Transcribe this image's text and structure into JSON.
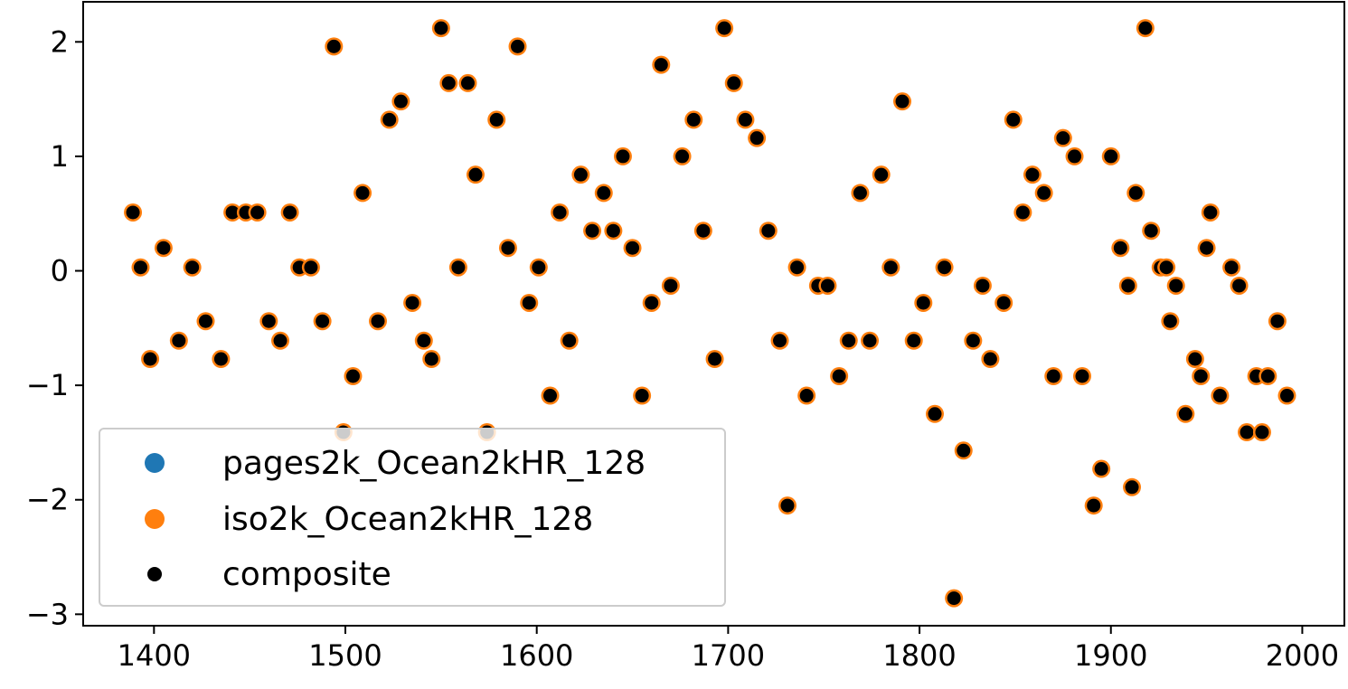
{
  "chart_data": {
    "type": "scatter",
    "title": "",
    "xlabel": "",
    "ylabel": "",
    "xlim": [
      1363,
      2022
    ],
    "ylim": [
      -3.1,
      2.35
    ],
    "xticks": [
      1400,
      1500,
      1600,
      1700,
      1800,
      1900,
      2000
    ],
    "yticks": [
      2,
      1,
      0,
      -1,
      -2,
      -3
    ],
    "xtick_labels": [
      "1400",
      "1500",
      "1600",
      "1700",
      "1800",
      "1900",
      "2000"
    ],
    "ytick_labels": [
      "2",
      "1",
      "0",
      "−1",
      "−2",
      "−3"
    ],
    "grid": false,
    "legend_placement": "lower-left",
    "series": [
      {
        "name": "pages2k_Ocean2kHR_128",
        "color": "#1f77b4"
      },
      {
        "name": "iso2k_Ocean2kHR_128",
        "color": "#ff7f0e"
      },
      {
        "name": "composite",
        "color": "#000000"
      }
    ],
    "points": [
      [
        1389,
        0.51
      ],
      [
        1393,
        0.03
      ],
      [
        1398,
        -0.77
      ],
      [
        1405,
        0.2
      ],
      [
        1413,
        -0.61
      ],
      [
        1420,
        0.03
      ],
      [
        1427,
        -0.44
      ],
      [
        1435,
        -0.77
      ],
      [
        1441,
        0.51
      ],
      [
        1448,
        0.51
      ],
      [
        1454,
        0.51
      ],
      [
        1460,
        -0.44
      ],
      [
        1466,
        -0.61
      ],
      [
        1471,
        0.51
      ],
      [
        1476,
        0.03
      ],
      [
        1482,
        0.03
      ],
      [
        1488,
        -0.44
      ],
      [
        1494,
        1.96
      ],
      [
        1499,
        -1.41
      ],
      [
        1504,
        -0.92
      ],
      [
        1509,
        0.68
      ],
      [
        1517,
        -0.44
      ],
      [
        1523,
        1.32
      ],
      [
        1529,
        1.48
      ],
      [
        1535,
        -0.28
      ],
      [
        1541,
        -0.61
      ],
      [
        1545,
        -0.77
      ],
      [
        1550,
        2.12
      ],
      [
        1554,
        1.64
      ],
      [
        1559,
        0.03
      ],
      [
        1564,
        1.64
      ],
      [
        1568,
        0.84
      ],
      [
        1574,
        -1.41
      ],
      [
        1579,
        1.32
      ],
      [
        1585,
        0.2
      ],
      [
        1590,
        1.96
      ],
      [
        1596,
        -0.28
      ],
      [
        1601,
        0.03
      ],
      [
        1607,
        -1.09
      ],
      [
        1612,
        0.51
      ],
      [
        1617,
        -0.61
      ],
      [
        1623,
        0.84
      ],
      [
        1629,
        0.35
      ],
      [
        1635,
        0.68
      ],
      [
        1640,
        0.35
      ],
      [
        1645,
        1.0
      ],
      [
        1650,
        0.2
      ],
      [
        1655,
        -1.09
      ],
      [
        1660,
        -0.28
      ],
      [
        1665,
        1.8
      ],
      [
        1670,
        -0.13
      ],
      [
        1676,
        1.0
      ],
      [
        1682,
        1.32
      ],
      [
        1687,
        0.35
      ],
      [
        1693,
        -0.77
      ],
      [
        1698,
        2.12
      ],
      [
        1703,
        1.64
      ],
      [
        1709,
        1.32
      ],
      [
        1715,
        1.16
      ],
      [
        1721,
        0.35
      ],
      [
        1727,
        -0.61
      ],
      [
        1731,
        -2.05
      ],
      [
        1736,
        0.03
      ],
      [
        1741,
        -1.09
      ],
      [
        1747,
        -0.13
      ],
      [
        1752,
        -0.13
      ],
      [
        1758,
        -0.92
      ],
      [
        1763,
        -0.61
      ],
      [
        1769,
        0.68
      ],
      [
        1774,
        -0.61
      ],
      [
        1780,
        0.84
      ],
      [
        1785,
        0.03
      ],
      [
        1791,
        1.48
      ],
      [
        1797,
        -0.61
      ],
      [
        1802,
        -0.28
      ],
      [
        1808,
        -1.25
      ],
      [
        1813,
        0.03
      ],
      [
        1818,
        -2.86
      ],
      [
        1823,
        -1.57
      ],
      [
        1828,
        -0.61
      ],
      [
        1833,
        -0.13
      ],
      [
        1837,
        -0.77
      ],
      [
        1844,
        -0.28
      ],
      [
        1849,
        1.32
      ],
      [
        1854,
        0.51
      ],
      [
        1859,
        0.84
      ],
      [
        1865,
        0.68
      ],
      [
        1870,
        -0.92
      ],
      [
        1875,
        1.16
      ],
      [
        1881,
        1.0
      ],
      [
        1885,
        -0.92
      ],
      [
        1891,
        -2.05
      ],
      [
        1895,
        -1.73
      ],
      [
        1900,
        1.0
      ],
      [
        1905,
        0.2
      ],
      [
        1909,
        -0.13
      ],
      [
        1911,
        -1.89
      ],
      [
        1913,
        0.68
      ],
      [
        1918,
        2.12
      ],
      [
        1921,
        0.35
      ],
      [
        1926,
        0.03
      ],
      [
        1929,
        0.03
      ],
      [
        1931,
        -0.44
      ],
      [
        1934,
        -0.13
      ],
      [
        1939,
        -1.25
      ],
      [
        1944,
        -0.77
      ],
      [
        1947,
        -0.92
      ],
      [
        1950,
        0.2
      ],
      [
        1952,
        0.51
      ],
      [
        1957,
        -1.09
      ],
      [
        1963,
        0.03
      ],
      [
        1967,
        -0.13
      ],
      [
        1971,
        -1.41
      ],
      [
        1976,
        -0.92
      ],
      [
        1979,
        -1.41
      ],
      [
        1982,
        -0.92
      ],
      [
        1987,
        -0.44
      ],
      [
        1992,
        -1.09
      ]
    ]
  }
}
